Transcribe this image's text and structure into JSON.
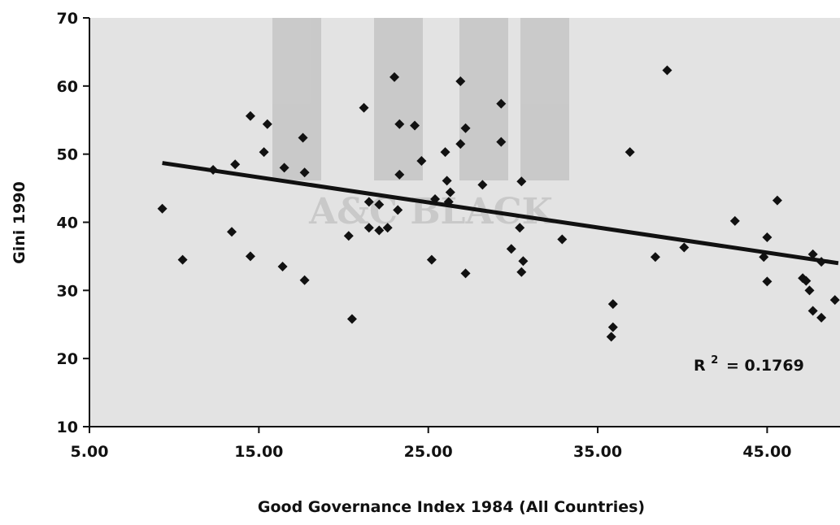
{
  "chart_data": {
    "type": "scatter",
    "xlabel": "Good Governance Index 1984 (All Countries)",
    "ylabel": "Gini 1990",
    "xlim": [
      5,
      49.3
    ],
    "ylim": [
      10,
      70
    ],
    "x_ticks": [
      "5.00",
      "15.00",
      "25.00",
      "35.00",
      "45.00"
    ],
    "x_tick_values": [
      5,
      15,
      25,
      35,
      45
    ],
    "y_ticks": [
      "10",
      "20",
      "30",
      "40",
      "50",
      "60",
      "70"
    ],
    "y_tick_values": [
      10,
      20,
      30,
      40,
      50,
      60,
      70
    ],
    "grid": false,
    "background": "#e3e3e3",
    "marker_color": "#111111",
    "trendline": {
      "x": [
        9.3,
        49.2
      ],
      "y": [
        48.7,
        34.0
      ]
    },
    "r_squared_label": "R",
    "r_squared_sup": "2",
    "r_squared_value": "= 0.1769",
    "watermark_text": "A&C BLACK",
    "points": [
      {
        "x": 9.3,
        "y": 42.0
      },
      {
        "x": 10.5,
        "y": 34.5
      },
      {
        "x": 12.3,
        "y": 47.7
      },
      {
        "x": 13.4,
        "y": 38.6
      },
      {
        "x": 13.6,
        "y": 48.5
      },
      {
        "x": 14.5,
        "y": 55.6
      },
      {
        "x": 14.5,
        "y": 35.0
      },
      {
        "x": 15.3,
        "y": 50.3
      },
      {
        "x": 15.5,
        "y": 54.4
      },
      {
        "x": 16.4,
        "y": 33.5
      },
      {
        "x": 16.5,
        "y": 48.0
      },
      {
        "x": 17.6,
        "y": 52.4
      },
      {
        "x": 17.7,
        "y": 47.3
      },
      {
        "x": 17.7,
        "y": 31.5
      },
      {
        "x": 20.3,
        "y": 38.0
      },
      {
        "x": 20.5,
        "y": 25.8
      },
      {
        "x": 21.2,
        "y": 56.8
      },
      {
        "x": 21.5,
        "y": 43.0
      },
      {
        "x": 21.5,
        "y": 39.2
      },
      {
        "x": 22.1,
        "y": 42.6
      },
      {
        "x": 22.1,
        "y": 38.8
      },
      {
        "x": 22.6,
        "y": 39.2
      },
      {
        "x": 23.0,
        "y": 61.3
      },
      {
        "x": 23.2,
        "y": 41.8
      },
      {
        "x": 23.3,
        "y": 54.4
      },
      {
        "x": 23.3,
        "y": 47.0
      },
      {
        "x": 24.2,
        "y": 54.2
      },
      {
        "x": 24.6,
        "y": 49.0
      },
      {
        "x": 25.2,
        "y": 34.5
      },
      {
        "x": 25.4,
        "y": 43.4
      },
      {
        "x": 26.0,
        "y": 50.3
      },
      {
        "x": 26.1,
        "y": 46.1
      },
      {
        "x": 26.3,
        "y": 44.4
      },
      {
        "x": 26.2,
        "y": 43.0
      },
      {
        "x": 26.9,
        "y": 60.7
      },
      {
        "x": 26.9,
        "y": 51.5
      },
      {
        "x": 27.2,
        "y": 53.8
      },
      {
        "x": 27.2,
        "y": 32.5
      },
      {
        "x": 28.2,
        "y": 45.5
      },
      {
        "x": 29.3,
        "y": 57.4
      },
      {
        "x": 29.3,
        "y": 51.8
      },
      {
        "x": 29.9,
        "y": 36.1
      },
      {
        "x": 30.4,
        "y": 39.2
      },
      {
        "x": 30.5,
        "y": 46.0
      },
      {
        "x": 30.6,
        "y": 34.3
      },
      {
        "x": 30.5,
        "y": 32.7
      },
      {
        "x": 32.9,
        "y": 37.5
      },
      {
        "x": 35.9,
        "y": 28.0
      },
      {
        "x": 35.9,
        "y": 24.6
      },
      {
        "x": 35.8,
        "y": 23.2
      },
      {
        "x": 36.9,
        "y": 50.3
      },
      {
        "x": 38.4,
        "y": 34.9
      },
      {
        "x": 39.1,
        "y": 62.3
      },
      {
        "x": 40.1,
        "y": 36.3
      },
      {
        "x": 43.1,
        "y": 40.2
      },
      {
        "x": 44.8,
        "y": 34.9
      },
      {
        "x": 45.0,
        "y": 37.8
      },
      {
        "x": 45.0,
        "y": 31.3
      },
      {
        "x": 45.6,
        "y": 43.2
      },
      {
        "x": 47.1,
        "y": 31.8
      },
      {
        "x": 47.3,
        "y": 31.4
      },
      {
        "x": 47.5,
        "y": 30.0
      },
      {
        "x": 47.7,
        "y": 35.3
      },
      {
        "x": 47.7,
        "y": 27.0
      },
      {
        "x": 48.2,
        "y": 34.2
      },
      {
        "x": 48.2,
        "y": 26.0
      },
      {
        "x": 49.0,
        "y": 28.6
      }
    ]
  }
}
